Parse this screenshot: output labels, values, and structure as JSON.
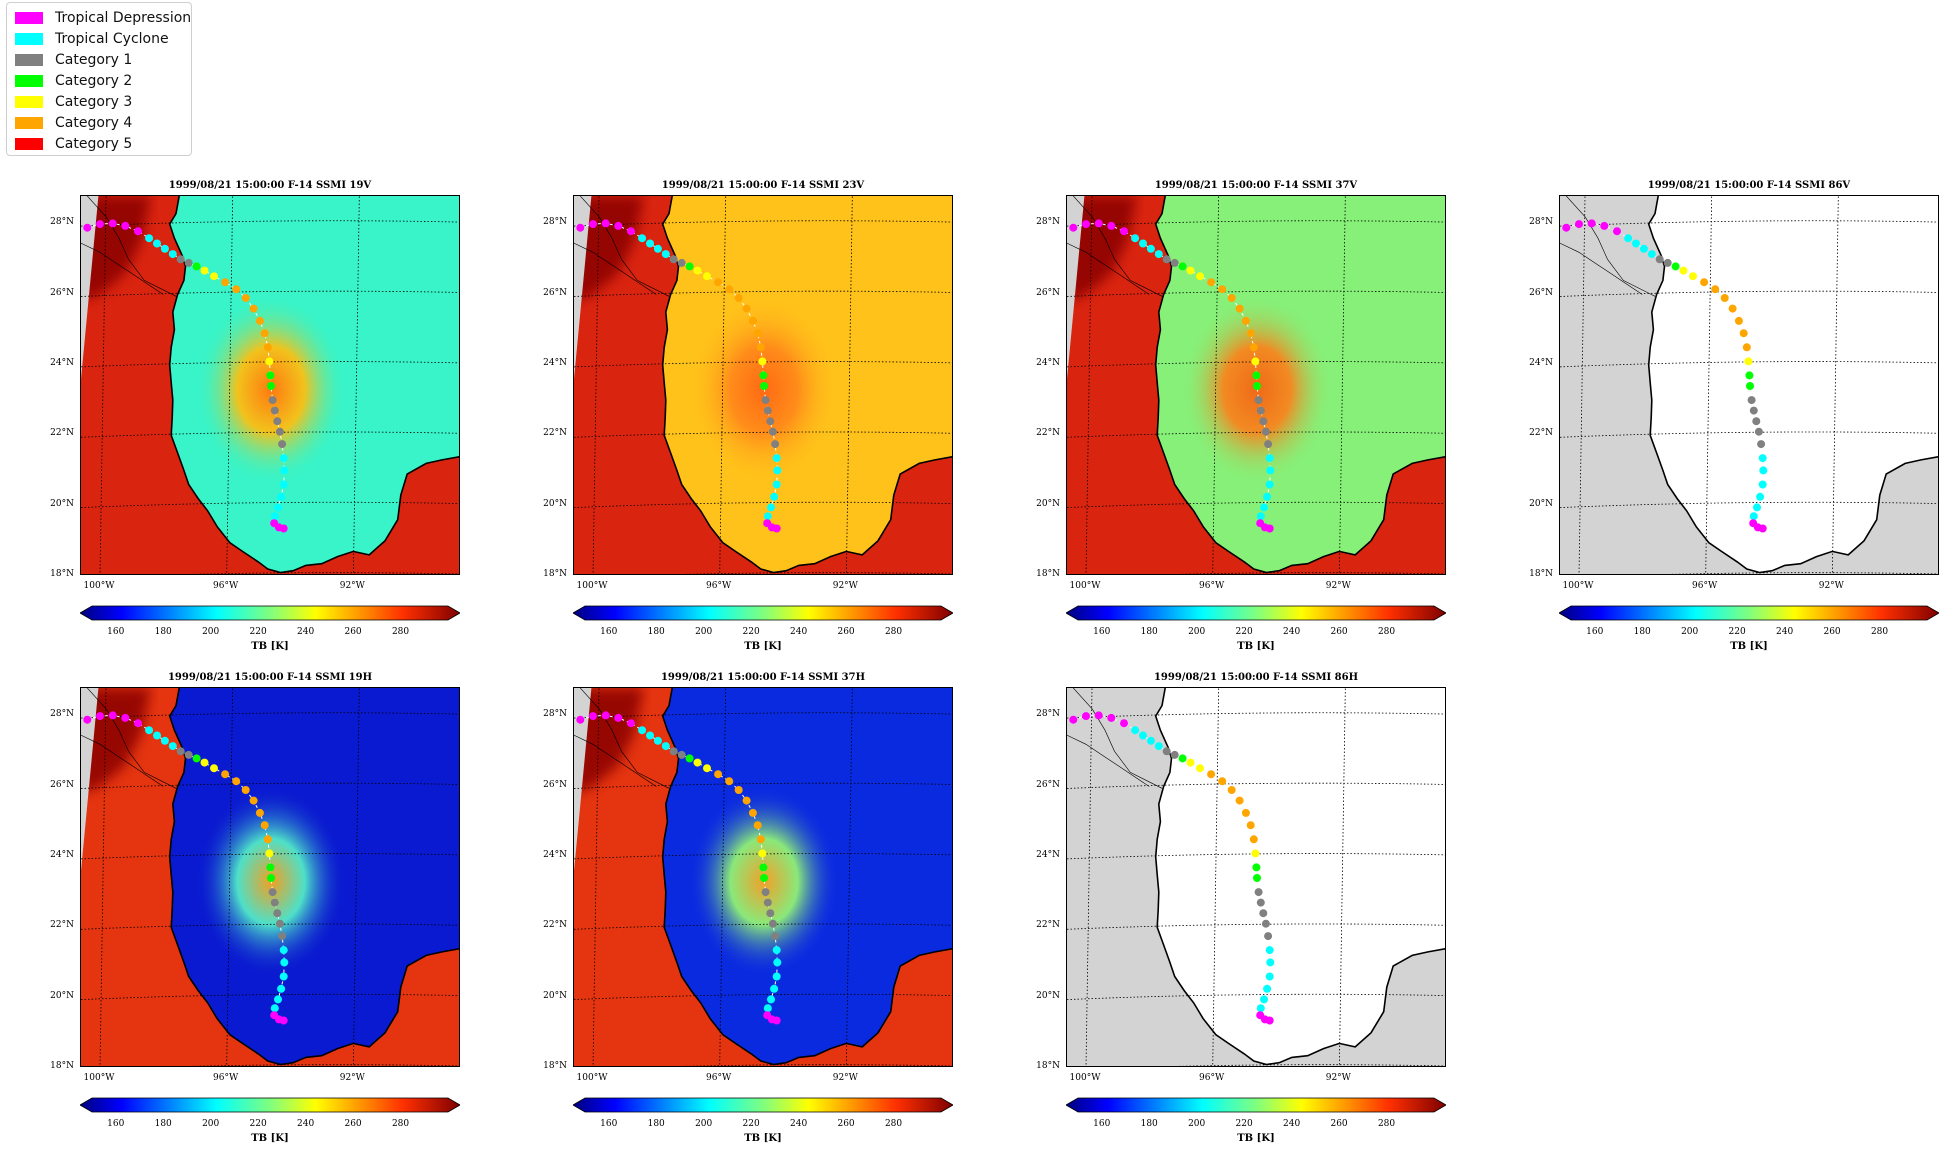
{
  "legend": [
    {
      "label": "Tropical Depression",
      "color": "#ff00ff"
    },
    {
      "label": "Tropical Cyclone",
      "color": "#00ffff"
    },
    {
      "label": "Category 1",
      "color": "#808080"
    },
    {
      "label": "Category 2",
      "color": "#00ff00"
    },
    {
      "label": "Category 3",
      "color": "#ffff00"
    },
    {
      "label": "Category 4",
      "color": "#ffa500"
    },
    {
      "label": "Category 5",
      "color": "#ff0000"
    }
  ],
  "map_extent": {
    "lon_min": -100.6,
    "lon_max": -88.6,
    "lat_min": 18.0,
    "lat_max": 28.8
  },
  "lat_ticks": [
    {
      "value": 28,
      "label": "28°N"
    },
    {
      "value": 26,
      "label": "26°N"
    },
    {
      "value": 24,
      "label": "24°N"
    },
    {
      "value": 22,
      "label": "22°N"
    },
    {
      "value": 20,
      "label": "20°N"
    },
    {
      "value": 18,
      "label": "18°N"
    }
  ],
  "lon_ticks": [
    {
      "value": -100,
      "label": "100°W"
    },
    {
      "value": -96,
      "label": "96°W"
    },
    {
      "value": -92,
      "label": "92°W"
    }
  ],
  "colorbar": {
    "label": "TB [K]",
    "min": 150,
    "max": 300,
    "ticks": [
      160,
      180,
      200,
      220,
      240,
      260,
      280
    ]
  },
  "panels": [
    {
      "title": "1999/08/21 15:00:00  F-14 SSMI 19V",
      "ocean": "#38f4c8",
      "storm": "#f2c21c",
      "eye": "#ff7a10",
      "land": "#d92410"
    },
    {
      "title": "1999/08/21 15:00:00  F-14 SSMI 23V",
      "ocean": "#ffc21a",
      "storm": "#ff8c1a",
      "eye": "#ff6a14",
      "land": "#d92410"
    },
    {
      "title": "1999/08/21 15:00:00  F-14 SSMI 37V",
      "ocean": "#86f078",
      "storm": "#f28a22",
      "eye": "#f06a18",
      "land": "#d92410"
    },
    {
      "title": "1999/08/21 15:00:00  F-14 SSMI 86V",
      "ocean": "#ffffff",
      "storm": "#ffffff",
      "eye": "#ffffff",
      "land": "#d3d3d3"
    },
    {
      "title": "1999/08/21 15:00:00  F-14 SSMI 19H",
      "ocean": "#0a1ad0",
      "storm": "#4ee0c8",
      "eye": "#f2a020",
      "land": "#e43410"
    },
    {
      "title": "1999/08/21 15:00:00  F-14 SSMI 37H",
      "ocean": "#0a2ae0",
      "storm": "#8ae87a",
      "eye": "#f2a028",
      "land": "#e43410"
    },
    {
      "title": "1999/08/21 15:00:00  F-14 SSMI 86H",
      "ocean": "#ffffff",
      "storm": "#ffffff",
      "eye": "#ffffff",
      "land": "#d3d3d3"
    }
  ],
  "track": [
    {
      "lon": -100.4,
      "lat": 27.9,
      "category": "Tropical Depression"
    },
    {
      "lon": -100.0,
      "lat": 28.0,
      "category": "Tropical Depression"
    },
    {
      "lon": -99.6,
      "lat": 28.02,
      "category": "Tropical Depression"
    },
    {
      "lon": -99.2,
      "lat": 27.95,
      "category": "Tropical Depression"
    },
    {
      "lon": -98.8,
      "lat": 27.8,
      "category": "Tropical Depression"
    },
    {
      "lon": -98.45,
      "lat": 27.6,
      "category": "Tropical Cyclone"
    },
    {
      "lon": -98.2,
      "lat": 27.45,
      "category": "Tropical Cyclone"
    },
    {
      "lon": -97.95,
      "lat": 27.3,
      "category": "Tropical Cyclone"
    },
    {
      "lon": -97.7,
      "lat": 27.15,
      "category": "Tropical Cyclone"
    },
    {
      "lon": -97.45,
      "lat": 27.0,
      "category": "Category 1"
    },
    {
      "lon": -97.2,
      "lat": 26.9,
      "category": "Category 1"
    },
    {
      "lon": -96.95,
      "lat": 26.8,
      "category": "Category 2"
    },
    {
      "lon": -96.7,
      "lat": 26.68,
      "category": "Category 3"
    },
    {
      "lon": -96.4,
      "lat": 26.52,
      "category": "Category 3"
    },
    {
      "lon": -96.05,
      "lat": 26.35,
      "category": "Category 4"
    },
    {
      "lon": -95.7,
      "lat": 26.15,
      "category": "Category 4"
    },
    {
      "lon": -95.4,
      "lat": 25.9,
      "category": "Category 4"
    },
    {
      "lon": -95.15,
      "lat": 25.6,
      "category": "Category 4"
    },
    {
      "lon": -94.95,
      "lat": 25.25,
      "category": "Category 4"
    },
    {
      "lon": -94.8,
      "lat": 24.9,
      "category": "Category 4"
    },
    {
      "lon": -94.7,
      "lat": 24.5,
      "category": "Category 4"
    },
    {
      "lon": -94.65,
      "lat": 24.1,
      "category": "Category 3"
    },
    {
      "lon": -94.62,
      "lat": 23.7,
      "category": "Category 2"
    },
    {
      "lon": -94.6,
      "lat": 23.4,
      "category": "Category 2"
    },
    {
      "lon": -94.55,
      "lat": 23.0,
      "category": "Category 1"
    },
    {
      "lon": -94.48,
      "lat": 22.7,
      "category": "Category 1"
    },
    {
      "lon": -94.4,
      "lat": 22.4,
      "category": "Category 1"
    },
    {
      "lon": -94.32,
      "lat": 22.1,
      "category": "Category 1"
    },
    {
      "lon": -94.25,
      "lat": 21.75,
      "category": "Category 1"
    },
    {
      "lon": -94.2,
      "lat": 21.35,
      "category": "Tropical Cyclone"
    },
    {
      "lon": -94.18,
      "lat": 21.0,
      "category": "Tropical Cyclone"
    },
    {
      "lon": -94.2,
      "lat": 20.6,
      "category": "Tropical Cyclone"
    },
    {
      "lon": -94.28,
      "lat": 20.25,
      "category": "Tropical Cyclone"
    },
    {
      "lon": -94.38,
      "lat": 19.95,
      "category": "Tropical Cyclone"
    },
    {
      "lon": -94.48,
      "lat": 19.7,
      "category": "Tropical Cyclone"
    },
    {
      "lon": -94.5,
      "lat": 19.5,
      "category": "Tropical Depression"
    },
    {
      "lon": -94.35,
      "lat": 19.38,
      "category": "Tropical Depression"
    },
    {
      "lon": -94.2,
      "lat": 19.35,
      "category": "Tropical Depression"
    }
  ]
}
